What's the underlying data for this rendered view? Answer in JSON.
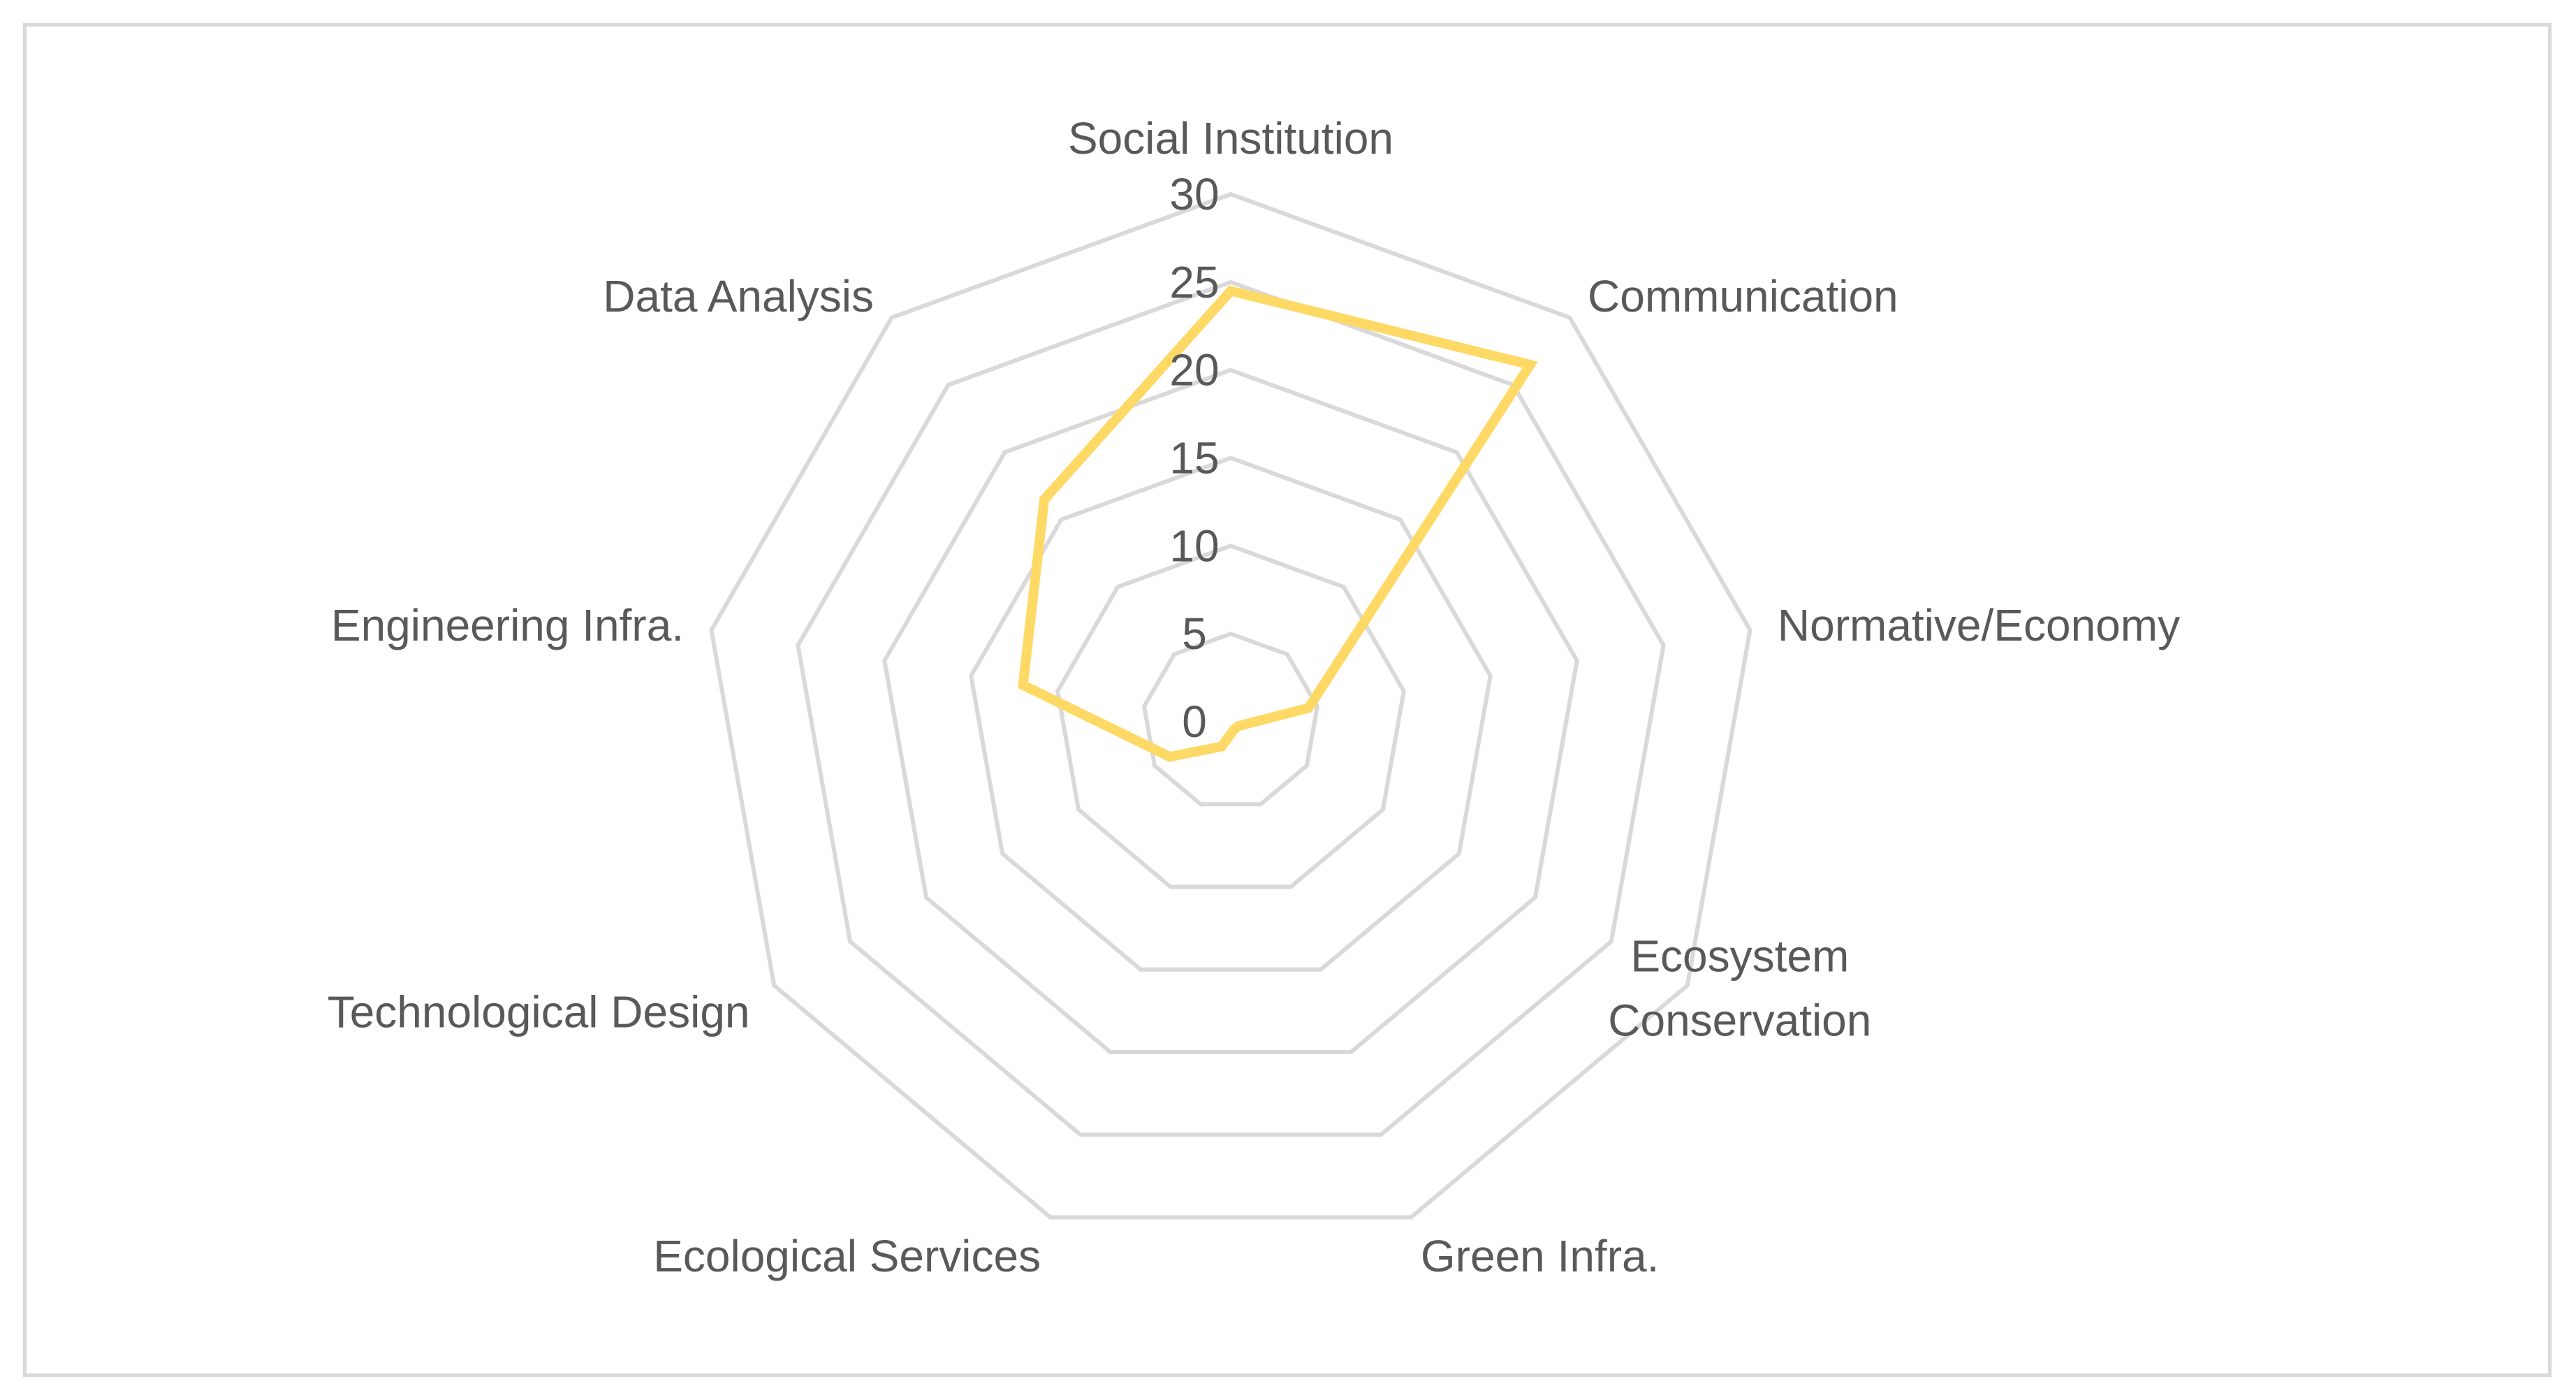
{
  "chart_data": {
    "type": "radar",
    "title": "",
    "categories": [
      "Social Institution",
      "Communication",
      "Normative/Economy",
      "Ecosystem Conservation",
      "Green Infra.",
      "Ecological Services",
      "Technological Design",
      "Engineering Infra.",
      "Data Analysis"
    ],
    "series": [
      {
        "values": [
          24.5,
          26.5,
          4.5,
          0.5,
          0.5,
          1.5,
          4,
          12,
          16.5
        ],
        "color": "#ffd966"
      }
    ],
    "ylim": [
      0,
      30
    ],
    "ticks": [
      0,
      5,
      10,
      15,
      20,
      25,
      30
    ],
    "grid": true,
    "legend": "none",
    "colors": {
      "grid": "#d9d9d9",
      "text": "#595959",
      "frame": "#d9d9d9"
    }
  }
}
